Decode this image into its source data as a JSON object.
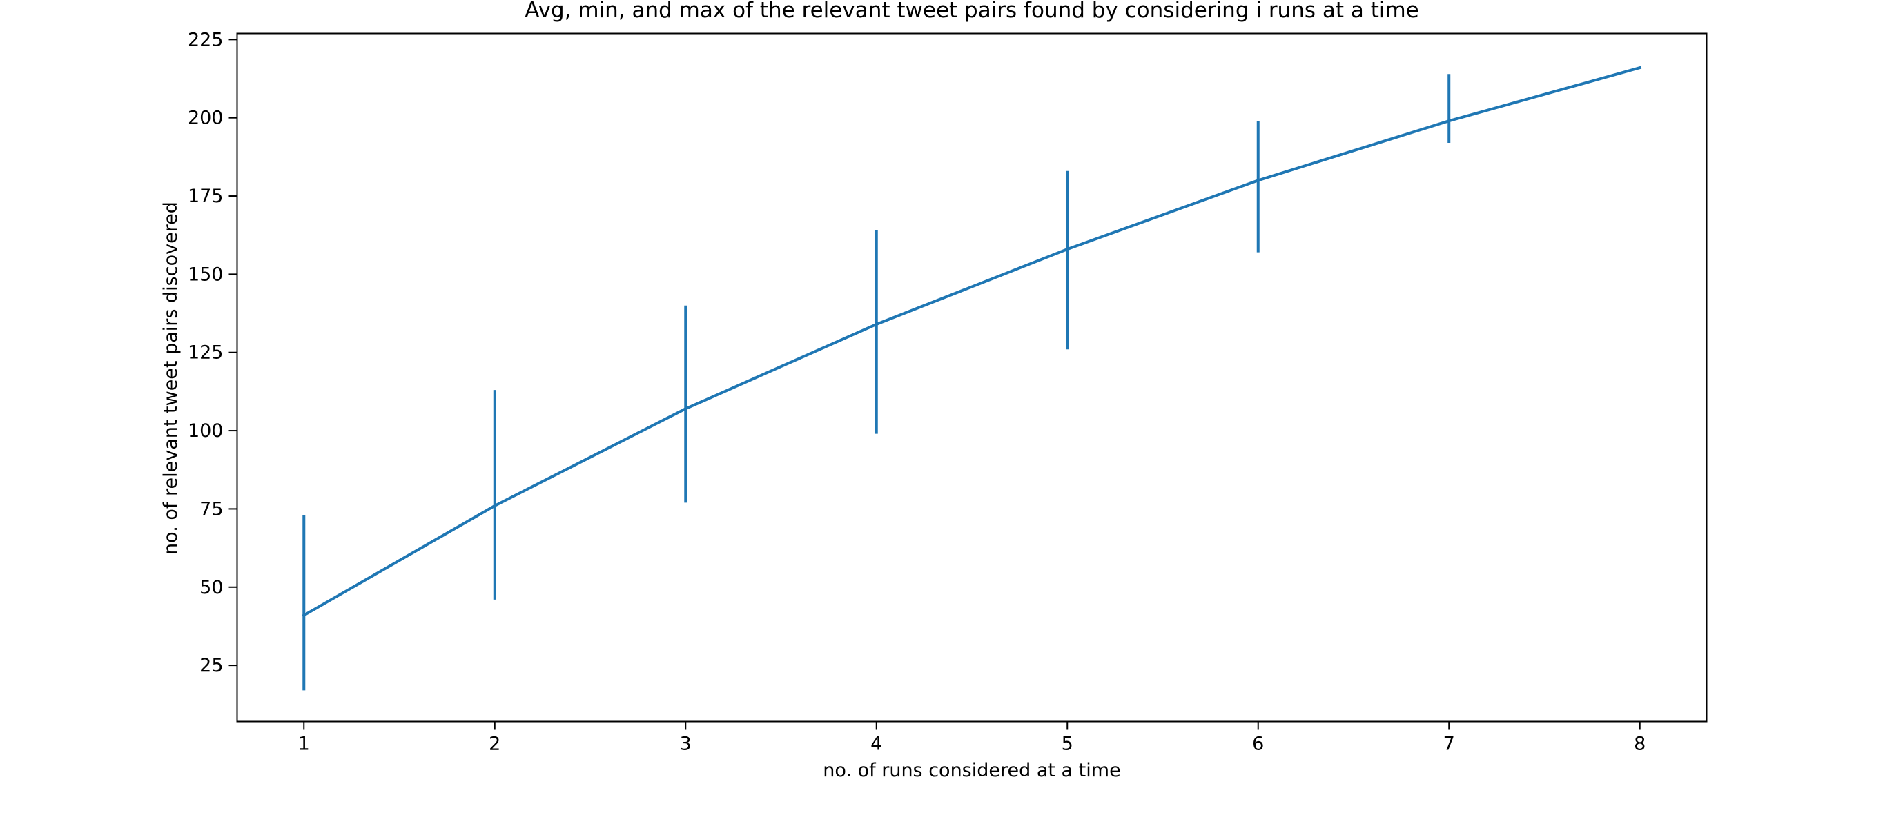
{
  "chart_data": {
    "type": "line",
    "title": "Avg, min, and max of the relevant tweet pairs found by considering i runs at a time",
    "xlabel": "no. of runs considered at a time",
    "ylabel": "no. of relevant tweet pairs discovered",
    "x": [
      1,
      2,
      3,
      4,
      5,
      6,
      7,
      8
    ],
    "series": [
      {
        "values": [
          41,
          76,
          107,
          134,
          158,
          180,
          199,
          216
        ],
        "min": [
          17,
          46,
          77,
          99,
          126,
          157,
          192,
          216
        ],
        "max": [
          73,
          113,
          140,
          164,
          183,
          199,
          214,
          216
        ]
      }
    ],
    "xlim": [
      0.65,
      8.35
    ],
    "ylim": [
      7.05,
      226.95
    ],
    "xticks": [
      "1",
      "2",
      "3",
      "4",
      "5",
      "6",
      "7",
      "8"
    ],
    "yticks": [
      "25",
      "50",
      "75",
      "100",
      "125",
      "150",
      "175",
      "200",
      "225"
    ],
    "grid": false,
    "colors": {
      "line": "#1f77b4",
      "axes": "#000000"
    }
  }
}
